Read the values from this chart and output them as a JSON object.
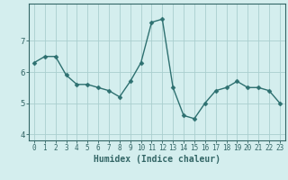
{
  "x": [
    0,
    1,
    2,
    3,
    4,
    5,
    6,
    7,
    8,
    9,
    10,
    11,
    12,
    13,
    14,
    15,
    16,
    17,
    18,
    19,
    20,
    21,
    22,
    23
  ],
  "y": [
    6.3,
    6.5,
    6.5,
    5.9,
    5.6,
    5.6,
    5.5,
    5.4,
    5.2,
    5.7,
    6.3,
    7.6,
    7.7,
    5.5,
    4.6,
    4.5,
    5.0,
    5.4,
    5.5,
    5.7,
    5.5,
    5.5,
    5.4,
    5.0
  ],
  "xlabel": "Humidex (Indice chaleur)",
  "ylim": [
    3.8,
    8.2
  ],
  "xlim": [
    -0.5,
    23.5
  ],
  "yticks": [
    4,
    5,
    6,
    7
  ],
  "xticks": [
    0,
    1,
    2,
    3,
    4,
    5,
    6,
    7,
    8,
    9,
    10,
    11,
    12,
    13,
    14,
    15,
    16,
    17,
    18,
    19,
    20,
    21,
    22,
    23
  ],
  "line_color": "#2d7070",
  "marker_color": "#2d7070",
  "bg_color": "#d4eeee",
  "grid_color": "#aacece",
  "axes_color": "#336666",
  "tick_label_fontsize": 5.5,
  "xlabel_fontsize": 7.0,
  "marker_size": 2.5,
  "line_width": 1.0
}
